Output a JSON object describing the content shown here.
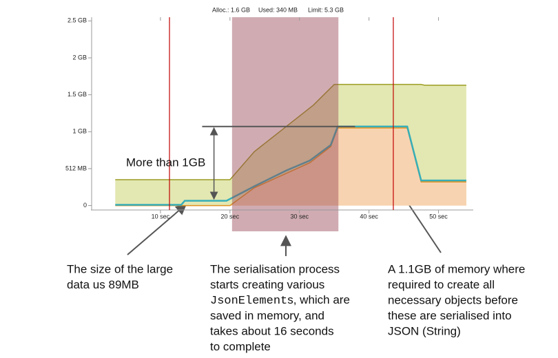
{
  "chart_data": {
    "type": "area",
    "header": [
      "Alloc.: 1.6 GB",
      "Used: 340 MB",
      "Limit: 5.3 GB"
    ],
    "xlim": [
      0,
      55
    ],
    "ylim": [
      -0.06,
      2.55
    ],
    "xticks": [
      {
        "value": 10,
        "label": "10 sec"
      },
      {
        "value": 20,
        "label": "20 sec"
      },
      {
        "value": 30,
        "label": "30 sec"
      },
      {
        "value": 40,
        "label": "40 sec"
      },
      {
        "value": 50,
        "label": "50 sec"
      }
    ],
    "yticks": [
      0,
      {
        "value": 0.5,
        "label": "512 MB"
      },
      {
        "value": 1,
        "label": "1 GB"
      },
      {
        "value": 1.5,
        "label": "1.5 GB"
      },
      {
        "value": 2,
        "label": "2 GB"
      },
      {
        "value": 2.5,
        "label": "2.5 GB"
      }
    ],
    "grid": false,
    "series": [
      {
        "color": "#9c9c22",
        "fill": "#e3e7b2",
        "x": [
          3.5,
          20,
          23.5,
          32,
          35,
          47.5,
          48,
          54
        ],
        "values": [
          0.35,
          0.35,
          0.73,
          1.36,
          1.64,
          1.64,
          1.63,
          1.63
        ]
      },
      {
        "color": "#e0901f",
        "fill": "#f8d3b1",
        "x": [
          3.5,
          20,
          23.5,
          31.5,
          34.5,
          35.5,
          45.5,
          47.5,
          54
        ],
        "values": [
          0,
          0,
          0.24,
          0.58,
          0.8,
          1.05,
          1.05,
          0.32,
          0.32
        ]
      },
      {
        "color": "#36aeb8",
        "x": [
          3.5,
          13,
          13.5,
          19.5,
          23.5,
          28,
          31.5,
          34.5,
          35.5,
          45.5,
          47.5,
          54
        ],
        "values": [
          0.01,
          0.01,
          0.065,
          0.065,
          0.26,
          0.47,
          0.61,
          0.82,
          1.07,
          1.07,
          0.34,
          0.34
        ]
      }
    ],
    "span": [
      20.3,
      35.6
    ],
    "markers": [
      11.3,
      43.5
    ],
    "level": {
      "y": 1.07,
      "x": [
        16,
        38
      ]
    },
    "measure": {
      "x": 17.7,
      "y": [
        0.07,
        1.07
      ],
      "label": "More than 1GB"
    },
    "notes": [
      {
        "lines": [
          "The size of the large",
          "data us 89MB"
        ]
      },
      {
        "lines": [
          "The serialisation process",
          "starts creating various",
          {
            "code": "JsonElement",
            "text": "s, which are"
          },
          "saved in memory, and",
          "takes about 16 seconds",
          "to complete"
        ]
      },
      {
        "lines": [
          "A 1.1GB of memory where",
          "required to create all",
          "necessary objects before",
          "these are serialised into",
          "JSON (String)"
        ]
      }
    ]
  }
}
